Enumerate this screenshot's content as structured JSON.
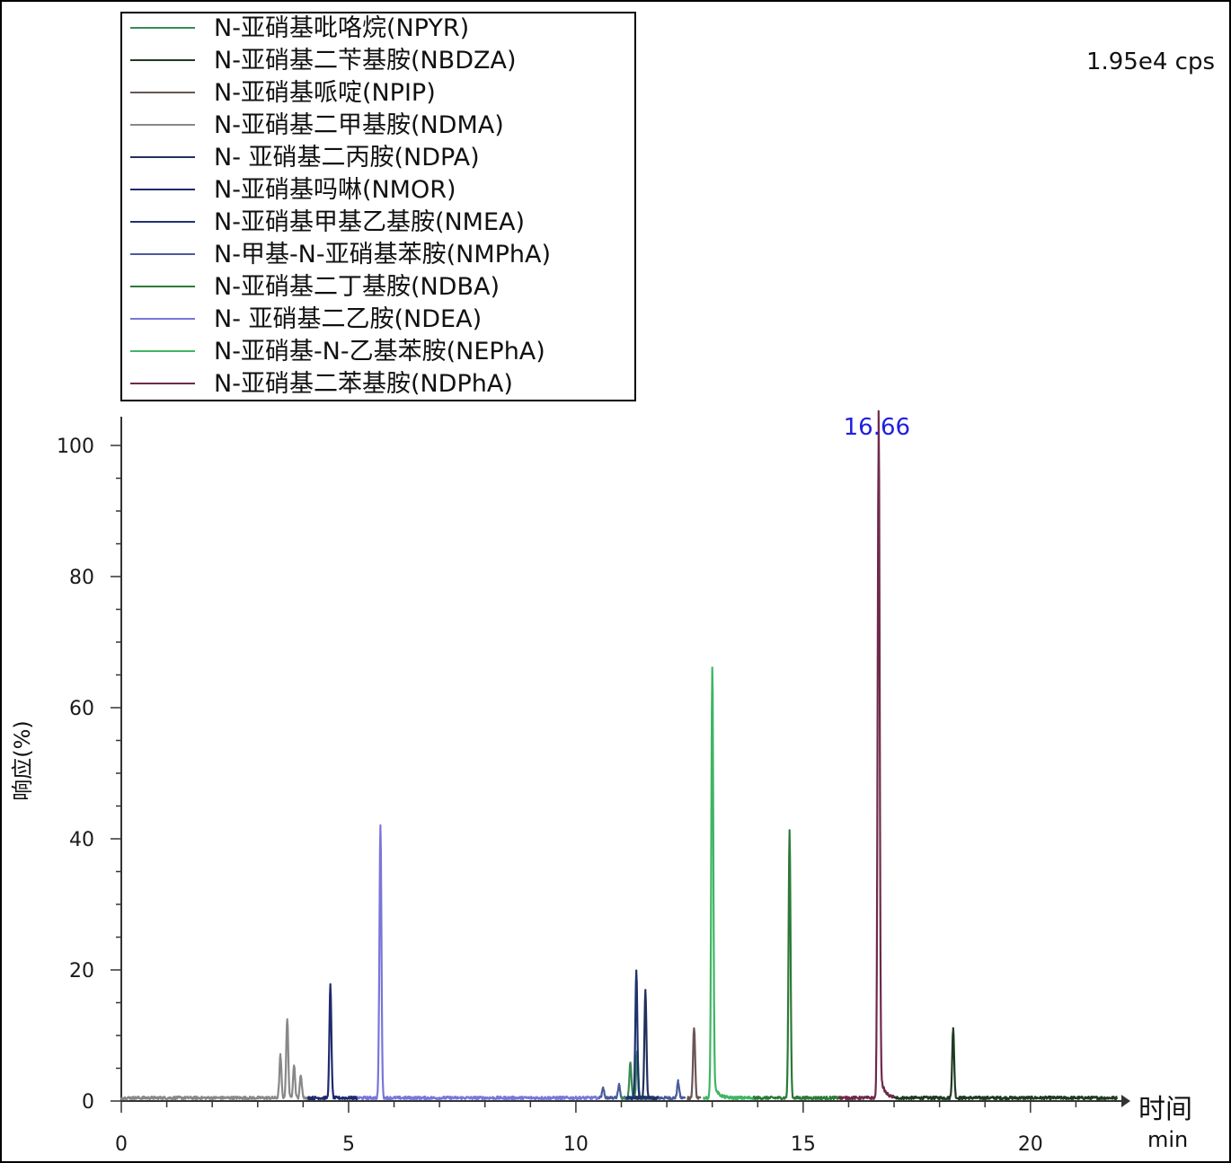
{
  "chart_data": {
    "type": "line",
    "title": "",
    "scale_note": "1.95e4 cps",
    "xlabel": "时间",
    "xunit": "min",
    "ylabel": "响应(%)",
    "xlim": [
      0,
      22
    ],
    "ylim": [
      0,
      100
    ],
    "x_ticks": [
      0,
      5,
      10,
      15,
      20
    ],
    "y_ticks": [
      0,
      20,
      40,
      60,
      80,
      100
    ],
    "grid": false,
    "legend_position": "top-left",
    "peak_annotation": {
      "x": 16.66,
      "label": "16.66"
    },
    "series": [
      {
        "name": "N-亚硝基吡咯烷(NPYR)",
        "color": "#3a8a55",
        "peaks": [
          [
            11.2,
            5.5
          ],
          [
            11.35,
            7.0
          ]
        ],
        "noise_range": [
          11.0,
          11.6
        ]
      },
      {
        "name": "N-亚硝基二苄基胺(NBDZA)",
        "color": "#1f3a22",
        "peaks": [
          [
            18.3,
            10.5
          ]
        ],
        "noise_range": [
          17.0,
          21.9
        ]
      },
      {
        "name": "N-亚硝基哌啶(NPIP)",
        "color": "#6b5555",
        "peaks": [
          [
            12.6,
            10.8
          ]
        ],
        "noise_range": [
          12.45,
          12.75
        ]
      },
      {
        "name": "N-亚硝基二甲基胺(NDMA)",
        "color": "#888888",
        "peaks": [
          [
            3.5,
            6.5
          ],
          [
            3.65,
            12.0
          ],
          [
            3.8,
            5.0
          ],
          [
            3.95,
            3.5
          ]
        ],
        "noise_range": [
          0.0,
          4.2
        ]
      },
      {
        "name": "N- 亚硝基二丙胺(NDPA)",
        "color": "#23305e",
        "peaks": [
          [
            11.53,
            16.5
          ]
        ],
        "noise_range": [
          11.3,
          11.8
        ]
      },
      {
        "name": "N-亚硝基吗啉(NMOR)",
        "color": "#202a6e",
        "peaks": [
          [
            4.6,
            17.2
          ]
        ],
        "noise_range": [
          4.1,
          5.2
        ]
      },
      {
        "name": "N-亚硝基甲基乙基胺(NMEA)",
        "color": "#1e3270",
        "peaks": [
          [
            11.33,
            19.3
          ]
        ],
        "noise_range": [
          11.1,
          11.6
        ]
      },
      {
        "name": "N-甲基-N-亚硝基苯胺(NMPhA)",
        "color": "#4a5b9c",
        "peaks": [
          [
            10.6,
            1.5
          ],
          [
            10.95,
            2.0
          ],
          [
            12.25,
            2.5
          ]
        ],
        "noise_range": [
          10.5,
          12.4
        ]
      },
      {
        "name": "N-亚硝基二丁基胺(NDBA)",
        "color": "#2d7a38",
        "peaks": [
          [
            14.7,
            40.7
          ]
        ],
        "noise_range": [
          13.9,
          15.8
        ]
      },
      {
        "name": "N- 亚硝基二乙胺(NDEA)",
        "color": "#7a76d8",
        "peaks": [
          [
            5.7,
            41.6
          ]
        ],
        "noise_range": [
          5.2,
          10.5
        ]
      },
      {
        "name": "N-亚硝基-N-乙基苯胺(NEPhA)",
        "color": "#3fb563",
        "peaks": [
          [
            13.0,
            65.5
          ]
        ],
        "noise_range": [
          12.8,
          13.9
        ]
      },
      {
        "name": "N-亚硝基二苯基胺(NDPhA)",
        "color": "#6e2a4a",
        "peaks": [
          [
            16.66,
            100.0
          ]
        ],
        "noise_range": [
          15.8,
          17.0
        ]
      }
    ]
  }
}
